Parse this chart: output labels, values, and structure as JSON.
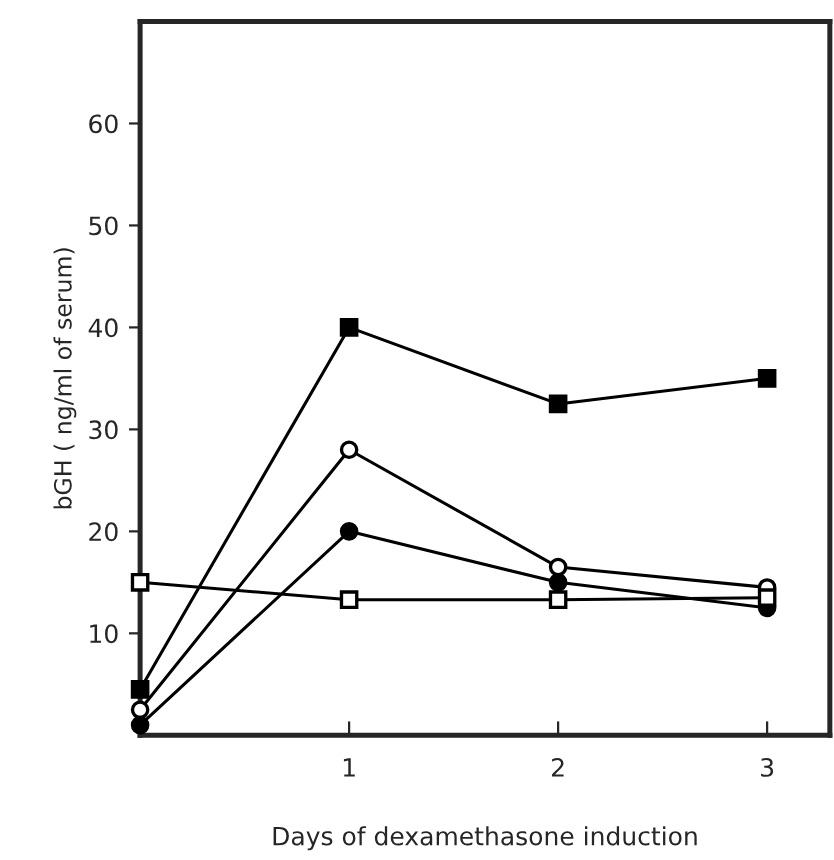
{
  "chart_data": {
    "type": "line",
    "xlabel": "Days of dexamethasone induction",
    "ylabel": "bGH ( ng/ml of serum)",
    "x": [
      0,
      1,
      2,
      3
    ],
    "xlim": [
      0,
      3.3
    ],
    "xticks": [
      1,
      2,
      3
    ],
    "ylim": [
      0,
      70
    ],
    "yticks": [
      10,
      20,
      30,
      40,
      50,
      60
    ],
    "grid": false,
    "line_style": "solid",
    "series": [
      {
        "color": "#000000",
        "marker": "square",
        "values": [
          4.5,
          40,
          32.5,
          35
        ]
      },
      {
        "color": "#000000",
        "marker": "circle",
        "values": [
          2.5,
          28,
          16.5,
          14.5
        ]
      },
      {
        "color": "#000000",
        "marker": "circle",
        "values": [
          1,
          20,
          15,
          12.5
        ]
      },
      {
        "color": "#000000",
        "marker": "square",
        "values": [
          15,
          13.3,
          13.3,
          13.5
        ]
      }
    ]
  }
}
